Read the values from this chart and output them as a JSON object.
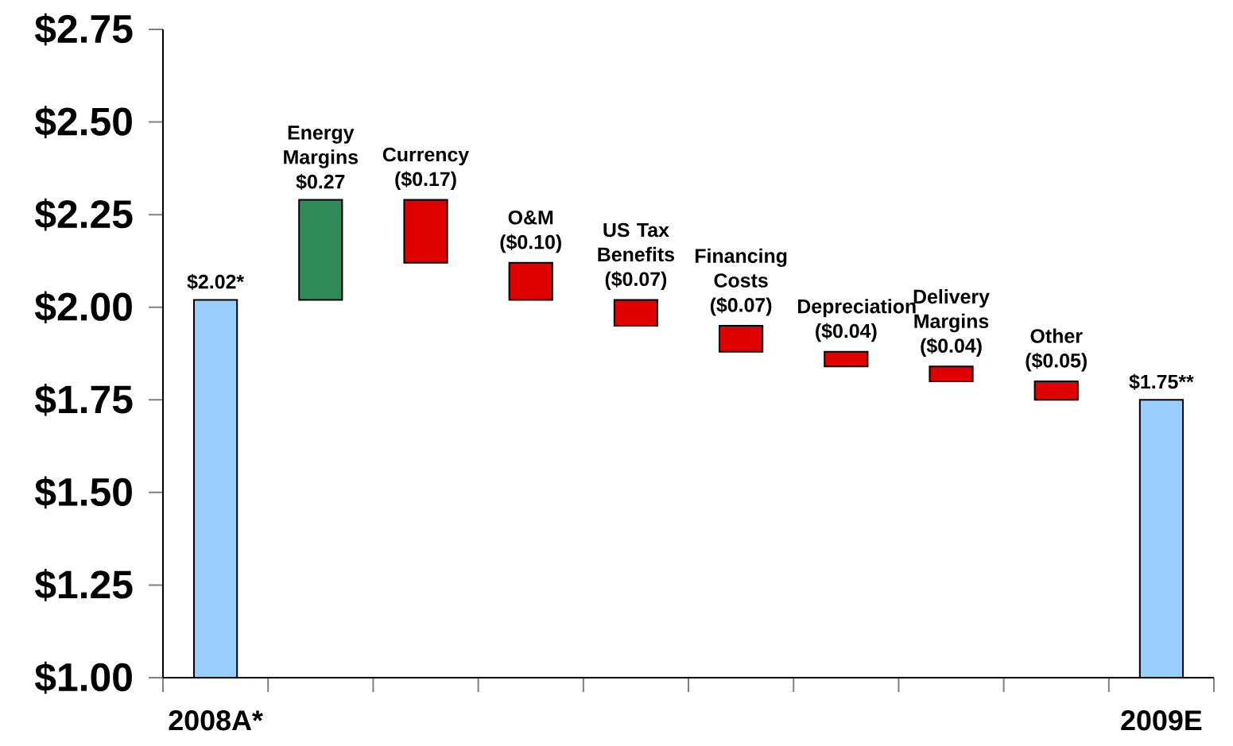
{
  "chart_data": {
    "type": "bar",
    "categories": [
      "2008A*",
      null,
      null,
      null,
      null,
      null,
      null,
      null,
      null,
      "2009E"
    ],
    "values": [
      2.02,
      0.27,
      -0.17,
      -0.1,
      -0.07,
      -0.07,
      -0.04,
      -0.04,
      -0.05,
      1.75
    ],
    "base": [
      null,
      2.02,
      2.29,
      2.12,
      2.02,
      1.95,
      1.88,
      1.84,
      1.8,
      null
    ],
    "colors": [
      "#99ccff",
      "#2e8b57",
      "#e00000",
      "#e00000",
      "#e00000",
      "#e00000",
      "#e00000",
      "#e00000",
      "#e00000",
      "#99ccff"
    ],
    "value_labels": [
      "$2.02*",
      "Energy Margins $0.27",
      "Currency ($0.17)",
      "O&M ($0.10)",
      "US Tax Benefits ($0.07)",
      "Financing Costs ($0.07)",
      "Depreciation ($0.04)",
      "Delivery Margins ($0.04)",
      "Other ($0.05)",
      "$1.75**"
    ],
    "ylim": [
      1.0,
      2.75
    ],
    "yticks": [
      {
        "value": 1.0,
        "label": "$1.00"
      },
      {
        "value": 1.25,
        "label": "$1.25"
      },
      {
        "value": 1.5,
        "label": "$1.50"
      },
      {
        "value": 1.75,
        "label": "$1.75"
      },
      {
        "value": 2.0,
        "label": "$2.00"
      },
      {
        "value": 2.25,
        "label": "$2.25"
      },
      {
        "value": 2.5,
        "label": "$2.50"
      },
      {
        "value": 2.75,
        "label": "$2.75"
      }
    ]
  }
}
